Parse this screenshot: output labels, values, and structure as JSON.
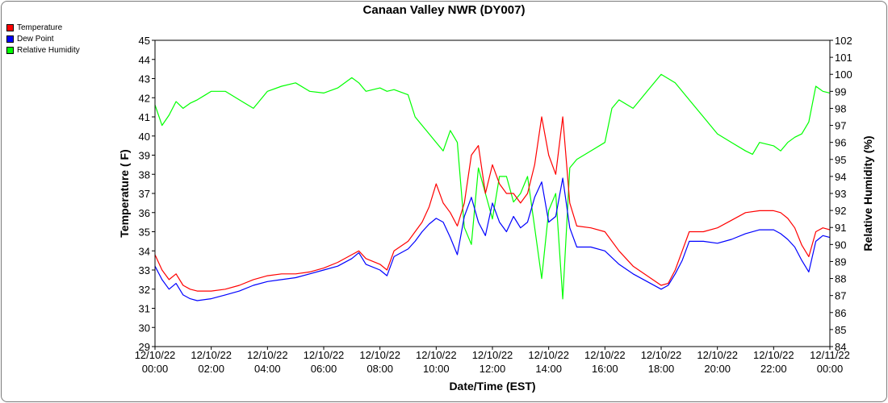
{
  "chart_data": {
    "type": "line",
    "title": "Canaan Valley NWR (DY007)",
    "xlabel": "Date/Time (EST)",
    "ylabel_left": "Temperature ( F)",
    "ylabel_right": "Relative Humidity (%)",
    "ylim_left": [
      29,
      45
    ],
    "ylim_right": [
      84,
      102
    ],
    "xlim_hours": [
      0,
      24
    ],
    "grid": false,
    "legend_placement": "top-left",
    "yticks_left": [
      "29",
      "30",
      "31",
      "32",
      "33",
      "34",
      "35",
      "36",
      "37",
      "38",
      "39",
      "40",
      "41",
      "42",
      "43",
      "44",
      "45"
    ],
    "yticks_right": [
      "84",
      "85",
      "86",
      "87",
      "88",
      "89",
      "90",
      "91",
      "92",
      "93",
      "94",
      "95",
      "96",
      "97",
      "98",
      "99",
      "100",
      "101",
      "102"
    ],
    "xticks": [
      {
        "date": "12/10/22",
        "time": "00:00"
      },
      {
        "date": "12/10/22",
        "time": "02:00"
      },
      {
        "date": "12/10/22",
        "time": "04:00"
      },
      {
        "date": "12/10/22",
        "time": "06:00"
      },
      {
        "date": "12/10/22",
        "time": "08:00"
      },
      {
        "date": "12/10/22",
        "time": "10:00"
      },
      {
        "date": "12/10/22",
        "time": "12:00"
      },
      {
        "date": "12/10/22",
        "time": "14:00"
      },
      {
        "date": "12/10/22",
        "time": "16:00"
      },
      {
        "date": "12/10/22",
        "time": "18:00"
      },
      {
        "date": "12/10/22",
        "time": "20:00"
      },
      {
        "date": "12/10/22",
        "time": "22:00"
      },
      {
        "date": "12/11/22",
        "time": "00:00"
      }
    ],
    "series": [
      {
        "name": "Temperature",
        "axis": "left",
        "color": "#ff0000",
        "points": [
          [
            0,
            33.8
          ],
          [
            0.25,
            33.0
          ],
          [
            0.5,
            32.5
          ],
          [
            0.75,
            32.8
          ],
          [
            1.0,
            32.2
          ],
          [
            1.25,
            32.0
          ],
          [
            1.5,
            31.9
          ],
          [
            2.0,
            31.9
          ],
          [
            2.5,
            32.0
          ],
          [
            3.0,
            32.2
          ],
          [
            3.5,
            32.5
          ],
          [
            4.0,
            32.7
          ],
          [
            4.5,
            32.8
          ],
          [
            5.0,
            32.8
          ],
          [
            5.5,
            32.9
          ],
          [
            6.0,
            33.1
          ],
          [
            6.5,
            33.4
          ],
          [
            7.0,
            33.8
          ],
          [
            7.25,
            34.0
          ],
          [
            7.5,
            33.6
          ],
          [
            8.0,
            33.3
          ],
          [
            8.25,
            33.0
          ],
          [
            8.5,
            34.0
          ],
          [
            9.0,
            34.5
          ],
          [
            9.25,
            35.0
          ],
          [
            9.5,
            35.5
          ],
          [
            9.75,
            36.3
          ],
          [
            10.0,
            37.5
          ],
          [
            10.25,
            36.5
          ],
          [
            10.5,
            36.0
          ],
          [
            10.75,
            35.3
          ],
          [
            11.0,
            36.5
          ],
          [
            11.25,
            39.0
          ],
          [
            11.5,
            39.5
          ],
          [
            11.75,
            37.0
          ],
          [
            12.0,
            38.5
          ],
          [
            12.25,
            37.5
          ],
          [
            12.5,
            37.0
          ],
          [
            12.75,
            37.0
          ],
          [
            13.0,
            36.5
          ],
          [
            13.25,
            37.0
          ],
          [
            13.5,
            38.5
          ],
          [
            13.75,
            41.0
          ],
          [
            14.0,
            39.0
          ],
          [
            14.25,
            38.0
          ],
          [
            14.5,
            41.0
          ],
          [
            14.75,
            36.5
          ],
          [
            15.0,
            35.3
          ],
          [
            15.5,
            35.2
          ],
          [
            16.0,
            35.0
          ],
          [
            16.5,
            34.0
          ],
          [
            17.0,
            33.2
          ],
          [
            17.5,
            32.7
          ],
          [
            18.0,
            32.2
          ],
          [
            18.25,
            32.3
          ],
          [
            18.5,
            33.0
          ],
          [
            18.75,
            34.0
          ],
          [
            19.0,
            35.0
          ],
          [
            19.5,
            35.0
          ],
          [
            20.0,
            35.2
          ],
          [
            20.5,
            35.6
          ],
          [
            21.0,
            36.0
          ],
          [
            21.5,
            36.1
          ],
          [
            22.0,
            36.1
          ],
          [
            22.25,
            36.0
          ],
          [
            22.5,
            35.7
          ],
          [
            22.75,
            35.2
          ],
          [
            23.0,
            34.3
          ],
          [
            23.25,
            33.7
          ],
          [
            23.5,
            35.0
          ],
          [
            23.75,
            35.2
          ],
          [
            24.0,
            35.1
          ]
        ]
      },
      {
        "name": "Dew Point",
        "axis": "left",
        "color": "#0000ff",
        "points": [
          [
            0,
            33.2
          ],
          [
            0.25,
            32.5
          ],
          [
            0.5,
            32.0
          ],
          [
            0.75,
            32.3
          ],
          [
            1.0,
            31.7
          ],
          [
            1.25,
            31.5
          ],
          [
            1.5,
            31.4
          ],
          [
            2.0,
            31.5
          ],
          [
            2.5,
            31.7
          ],
          [
            3.0,
            31.9
          ],
          [
            3.5,
            32.2
          ],
          [
            4.0,
            32.4
          ],
          [
            4.5,
            32.5
          ],
          [
            5.0,
            32.6
          ],
          [
            5.5,
            32.8
          ],
          [
            6.0,
            33.0
          ],
          [
            6.5,
            33.2
          ],
          [
            7.0,
            33.6
          ],
          [
            7.25,
            33.9
          ],
          [
            7.5,
            33.3
          ],
          [
            8.0,
            33.0
          ],
          [
            8.25,
            32.7
          ],
          [
            8.5,
            33.7
          ],
          [
            9.0,
            34.1
          ],
          [
            9.25,
            34.5
          ],
          [
            9.5,
            35.0
          ],
          [
            9.75,
            35.4
          ],
          [
            10.0,
            35.7
          ],
          [
            10.25,
            35.5
          ],
          [
            10.5,
            34.7
          ],
          [
            10.75,
            33.8
          ],
          [
            11.0,
            35.8
          ],
          [
            11.25,
            36.8
          ],
          [
            11.5,
            35.5
          ],
          [
            11.75,
            34.8
          ],
          [
            12.0,
            36.5
          ],
          [
            12.25,
            35.5
          ],
          [
            12.5,
            35.0
          ],
          [
            12.75,
            35.8
          ],
          [
            13.0,
            35.2
          ],
          [
            13.25,
            35.5
          ],
          [
            13.5,
            36.8
          ],
          [
            13.75,
            37.6
          ],
          [
            14.0,
            35.5
          ],
          [
            14.25,
            35.8
          ],
          [
            14.5,
            37.8
          ],
          [
            14.75,
            35.2
          ],
          [
            15.0,
            34.2
          ],
          [
            15.5,
            34.2
          ],
          [
            16.0,
            34.0
          ],
          [
            16.5,
            33.3
          ],
          [
            17.0,
            32.8
          ],
          [
            17.5,
            32.4
          ],
          [
            18.0,
            32.0
          ],
          [
            18.25,
            32.2
          ],
          [
            18.5,
            32.8
          ],
          [
            18.75,
            33.5
          ],
          [
            19.0,
            34.5
          ],
          [
            19.5,
            34.5
          ],
          [
            20.0,
            34.4
          ],
          [
            20.5,
            34.6
          ],
          [
            21.0,
            34.9
          ],
          [
            21.5,
            35.1
          ],
          [
            22.0,
            35.1
          ],
          [
            22.25,
            34.9
          ],
          [
            22.5,
            34.6
          ],
          [
            22.75,
            34.2
          ],
          [
            23.0,
            33.5
          ],
          [
            23.25,
            32.9
          ],
          [
            23.5,
            34.5
          ],
          [
            23.75,
            34.8
          ],
          [
            24.0,
            34.7
          ]
        ]
      },
      {
        "name": "Relative Humidity",
        "axis": "right",
        "color": "#00ff00",
        "points": [
          [
            0,
            98.2
          ],
          [
            0.25,
            97.0
          ],
          [
            0.5,
            97.6
          ],
          [
            0.75,
            98.4
          ],
          [
            1.0,
            98.0
          ],
          [
            1.25,
            98.3
          ],
          [
            1.5,
            98.5
          ],
          [
            2.0,
            99.0
          ],
          [
            2.5,
            99.0
          ],
          [
            3.0,
            98.5
          ],
          [
            3.5,
            98.0
          ],
          [
            4.0,
            99.0
          ],
          [
            4.5,
            99.3
          ],
          [
            5.0,
            99.5
          ],
          [
            5.5,
            99.0
          ],
          [
            6.0,
            98.9
          ],
          [
            6.5,
            99.2
          ],
          [
            7.0,
            99.8
          ],
          [
            7.25,
            99.5
          ],
          [
            7.5,
            99.0
          ],
          [
            8.0,
            99.2
          ],
          [
            8.25,
            99.0
          ],
          [
            8.5,
            99.1
          ],
          [
            9.0,
            98.8
          ],
          [
            9.25,
            97.5
          ],
          [
            9.5,
            97.0
          ],
          [
            9.75,
            96.5
          ],
          [
            10.0,
            96.0
          ],
          [
            10.25,
            95.5
          ],
          [
            10.5,
            96.7
          ],
          [
            10.75,
            96.0
          ],
          [
            11.0,
            91.0
          ],
          [
            11.25,
            90.0
          ],
          [
            11.5,
            94.5
          ],
          [
            11.75,
            93.0
          ],
          [
            12.0,
            91.5
          ],
          [
            12.25,
            94.0
          ],
          [
            12.5,
            94.0
          ],
          [
            12.75,
            92.5
          ],
          [
            13.0,
            93.0
          ],
          [
            13.25,
            94.0
          ],
          [
            13.5,
            91.0
          ],
          [
            13.75,
            88.0
          ],
          [
            14.0,
            92.0
          ],
          [
            14.25,
            93.0
          ],
          [
            14.5,
            86.8
          ],
          [
            14.75,
            94.5
          ],
          [
            15.0,
            95.0
          ],
          [
            15.5,
            95.5
          ],
          [
            16.0,
            96.0
          ],
          [
            16.25,
            98.0
          ],
          [
            16.5,
            98.5
          ],
          [
            17.0,
            98.0
          ],
          [
            17.25,
            98.5
          ],
          [
            17.5,
            99.0
          ],
          [
            18.0,
            100.0
          ],
          [
            18.5,
            99.5
          ],
          [
            19.0,
            98.5
          ],
          [
            19.5,
            97.5
          ],
          [
            20.0,
            96.5
          ],
          [
            20.5,
            96.0
          ],
          [
            21.0,
            95.5
          ],
          [
            21.25,
            95.3
          ],
          [
            21.5,
            96.0
          ],
          [
            22.0,
            95.8
          ],
          [
            22.25,
            95.5
          ],
          [
            22.5,
            96.0
          ],
          [
            22.75,
            96.3
          ],
          [
            23.0,
            96.5
          ],
          [
            23.25,
            97.2
          ],
          [
            23.5,
            99.3
          ],
          [
            23.75,
            99.0
          ],
          [
            24.0,
            98.9
          ]
        ]
      }
    ]
  }
}
